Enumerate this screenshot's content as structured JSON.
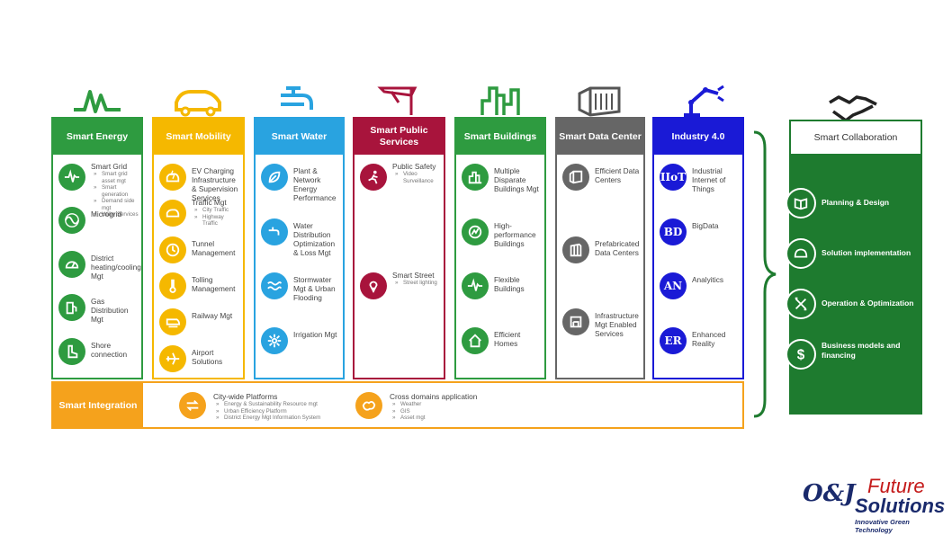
{
  "columns": [
    {
      "title": "Smart Energy",
      "color": "#2e9b40",
      "items": [
        {
          "label": "Smart Grid",
          "subs": [
            "Smart grid asset mgt",
            "Smart generation",
            "Demand side mgt",
            "Utility Services"
          ],
          "icon": "pulse-icon"
        },
        {
          "label": "Microgrid",
          "subs": [],
          "icon": "sine-wave-icon"
        },
        {
          "label": "District heating/cooling Mgt",
          "subs": [],
          "icon": "gauge-icon"
        },
        {
          "label": "Gas Distribution Mgt",
          "subs": [],
          "icon": "gas-pump-icon"
        },
        {
          "label": "Shore connection",
          "subs": [],
          "icon": "boot-icon"
        }
      ]
    },
    {
      "title": "Smart Mobility",
      "color": "#f5b800",
      "items": [
        {
          "label": "EV Charging Infrastructure & Supervision Services",
          "subs": [],
          "icon": "ev-charger-icon"
        },
        {
          "label": "Traffic Mgt",
          "subs": [
            "City Traffic",
            "Highway Traffic"
          ],
          "icon": "car-icon"
        },
        {
          "label": "Tunnel Management",
          "subs": [],
          "icon": "clock-icon"
        },
        {
          "label": "Tolling Management",
          "subs": [],
          "icon": "thermometer-icon"
        },
        {
          "label": "Railway Mgt",
          "subs": [],
          "icon": "train-icon"
        },
        {
          "label": "Airport Solutions",
          "subs": [],
          "icon": "airplane-icon"
        }
      ]
    },
    {
      "title": "Smart Water",
      "color": "#29a3e0",
      "items": [
        {
          "label": "Plant & Network Energy Performance",
          "subs": [],
          "icon": "leaf-icon"
        },
        {
          "label": "Water Distribution Optimization & Loss Mgt",
          "subs": [],
          "icon": "faucet-icon"
        },
        {
          "label": "Stormwater Mgt & Urban Flooding",
          "subs": [],
          "icon": "waves-icon"
        },
        {
          "label": "Irrigation Mgt",
          "subs": [],
          "icon": "flower-icon"
        }
      ]
    },
    {
      "title": "Smart Public Services",
      "color": "#a8143c",
      "items": [
        {
          "label": "Public Safety",
          "subs": [
            "Video Surveillance"
          ],
          "icon": "runner-icon"
        },
        {
          "label": "Smart Street",
          "subs": [
            "Street lighting"
          ],
          "icon": "light-bulb-icon"
        }
      ]
    },
    {
      "title": "Smart Buildings",
      "color": "#2e9b40",
      "items": [
        {
          "label": "Multiple Disparate Buildings Mgt",
          "subs": [],
          "icon": "buildings-icon"
        },
        {
          "label": "High-performance Buildings",
          "subs": [],
          "icon": "chart-building-icon"
        },
        {
          "label": "Flexible Buildings",
          "subs": [],
          "icon": "pulse-icon"
        },
        {
          "label": "Efficient Homes",
          "subs": [],
          "icon": "home-icon"
        }
      ]
    },
    {
      "title": "Smart Data Center",
      "color": "#666666",
      "items": [
        {
          "label": "Efficient Data Centers",
          "subs": [],
          "icon": "datacenter-icon"
        },
        {
          "label": "Prefabricated Data Centers",
          "subs": [],
          "icon": "container-icon"
        },
        {
          "label": "Infrastructure Mgt Enabled Services",
          "subs": [],
          "icon": "server-icon"
        }
      ]
    },
    {
      "title": "Industry 4.0",
      "color": "#1a1ad6",
      "items": [
        {
          "label": "Industrial Internet of Things",
          "subs": [],
          "badge": "IIoT"
        },
        {
          "label": "BigData",
          "subs": [],
          "badge": "BD"
        },
        {
          "label": "Analyitics",
          "subs": [],
          "badge": "AN"
        },
        {
          "label": "Enhanced Reality",
          "subs": [],
          "badge": "ER"
        }
      ]
    }
  ],
  "integration": {
    "title": "Smart Integration",
    "color": "#f5a21c",
    "items": [
      {
        "label": "City-wide Platforms",
        "subs": [
          "Energy & Sustainability Resource mgt",
          "Urban Efficiency Platform",
          "District Energy Mgt Information System"
        ],
        "icon": "arrows-icon"
      },
      {
        "label": "Cross domains application",
        "subs": [
          "Weather",
          "GIS",
          "Asset mgt"
        ],
        "icon": "map-icon"
      }
    ]
  },
  "collaboration": {
    "title": "Smart Collaboration",
    "color": "#1e7b2f",
    "items": [
      {
        "label": "Planning & Design",
        "icon": "book-icon"
      },
      {
        "label": "Solution implementation",
        "icon": "helmet-icon"
      },
      {
        "label": "Operation & Optimization",
        "icon": "tools-icon"
      },
      {
        "label": "Business models and financing",
        "icon": "dollar-icon"
      }
    ]
  },
  "logo": {
    "line1": "Future",
    "line2": "Solutions",
    "tagline": "Innovative Green Technology",
    "initials": "O&J",
    "red": "#c41a1a",
    "navy": "#1a2a6c"
  }
}
